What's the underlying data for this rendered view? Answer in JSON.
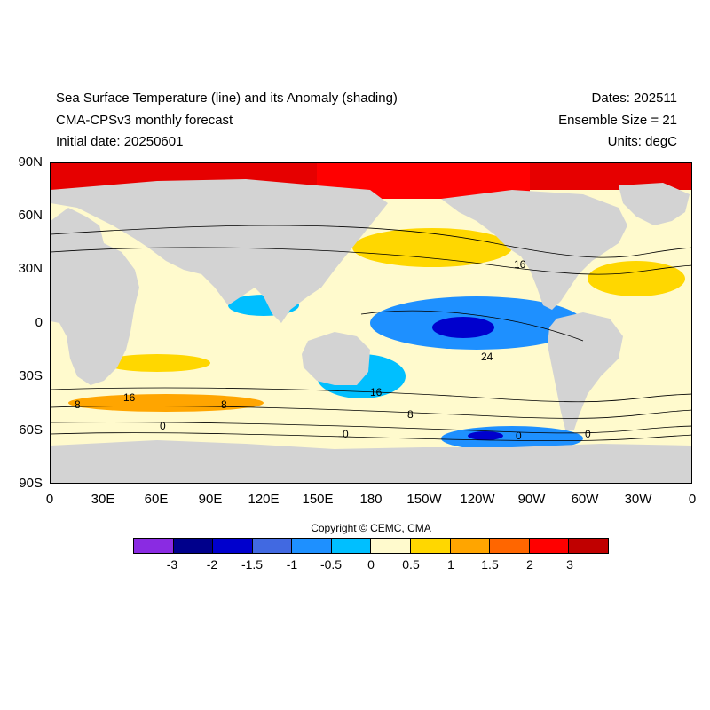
{
  "header": {
    "title": "Sea Surface Temperature (line) and its Anomaly (shading)",
    "model": "CMA-CPSv3 monthly forecast",
    "initial_date": "Initial date: 20250601",
    "dates": "Dates: 202511",
    "ensemble": "Ensemble Size = 21",
    "units": "Units: degC"
  },
  "axes": {
    "lat_labels": [
      "90N",
      "60N",
      "30N",
      "0",
      "30S",
      "60S",
      "90S"
    ],
    "lon_labels": [
      "0",
      "30E",
      "60E",
      "90E",
      "120E",
      "150E",
      "180",
      "150W",
      "120W",
      "90W",
      "60W",
      "30W",
      "0"
    ]
  },
  "contour_labels": [
    "16",
    "24",
    "16",
    "8",
    "16",
    "8",
    "8",
    "0",
    "0",
    "0",
    "0"
  ],
  "copyright": "Copyright © CEMC, CMA",
  "colorbar": {
    "labels": [
      "-3",
      "-2",
      "-1.5",
      "-1",
      "-0.5",
      "0",
      "0.5",
      "1",
      "1.5",
      "2",
      "3"
    ],
    "colors": [
      "#8a2be2",
      "#00008b",
      "#0000cd",
      "#4169e1",
      "#1e90ff",
      "#00bfff",
      "#fffacd",
      "#ffd700",
      "#ffa500",
      "#ff6600",
      "#ff0000",
      "#c00000"
    ]
  },
  "colors": {
    "land": "#d3d3d3",
    "ocean_neutral": "#fffacd"
  }
}
